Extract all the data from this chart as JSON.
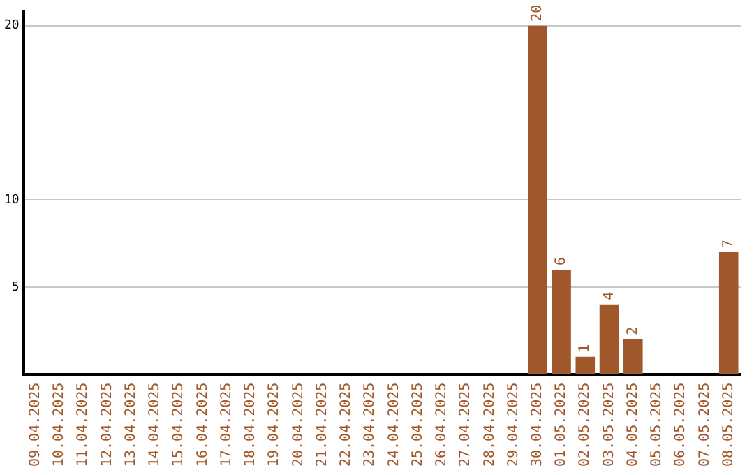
{
  "chart_data": {
    "type": "bar",
    "categories": [
      "09.04.2025",
      "10.04.2025",
      "11.04.2025",
      "12.04.2025",
      "13.04.2025",
      "14.04.2025",
      "15.04.2025",
      "16.04.2025",
      "17.04.2025",
      "18.04.2025",
      "19.04.2025",
      "20.04.2025",
      "21.04.2025",
      "22.04.2025",
      "23.04.2025",
      "24.04.2025",
      "25.04.2025",
      "26.04.2025",
      "27.04.2025",
      "28.04.2025",
      "29.04.2025",
      "30.04.2025",
      "01.05.2025",
      "02.05.2025",
      "03.05.2025",
      "04.05.2025",
      "05.05.2025",
      "06.05.2025",
      "07.05.2025",
      "08.05.2025"
    ],
    "values": [
      0,
      0,
      0,
      0,
      0,
      0,
      0,
      0,
      0,
      0,
      0,
      0,
      0,
      0,
      0,
      0,
      0,
      0,
      0,
      0,
      0,
      20,
      6,
      1,
      4,
      2,
      0,
      0,
      0,
      7
    ],
    "value_labels": [
      null,
      null,
      null,
      null,
      null,
      null,
      null,
      null,
      null,
      null,
      null,
      null,
      null,
      null,
      null,
      null,
      null,
      null,
      null,
      null,
      null,
      "20",
      "6",
      "1",
      "4",
      "2",
      null,
      null,
      null,
      "7"
    ],
    "color": "#a0582a",
    "ylim": [
      0,
      20.8
    ],
    "yticks": [
      5,
      10,
      20
    ],
    "grid": "y",
    "legend": false
  }
}
